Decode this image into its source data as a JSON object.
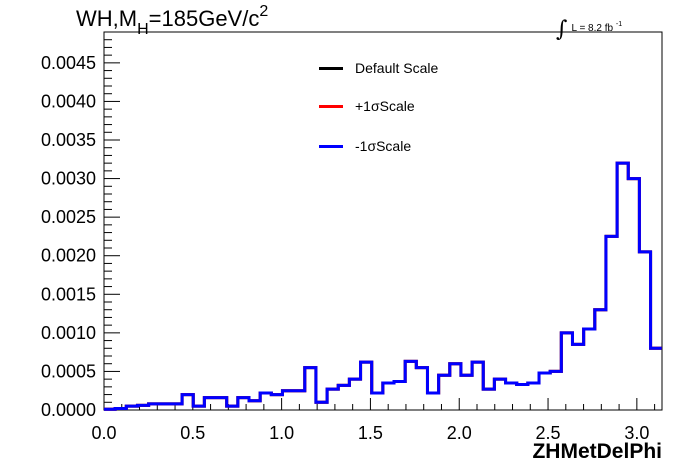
{
  "chart_data": {
    "type": "line",
    "title_prefix": "WH,M",
    "title_subscript": "H",
    "title_suffix": "=185GeV/c",
    "title_superscript": "2",
    "lumi_label": "L = 8.2 fb",
    "lumi_superscript": "-1",
    "xlabel": "ZHMetDelPhi",
    "xlim": [
      0.0,
      3.1416
    ],
    "ylim": [
      0.0,
      0.0049
    ],
    "x_ticks": [
      "0.0",
      "0.5",
      "1.0",
      "1.5",
      "2.0",
      "2.5",
      "3.0"
    ],
    "x_tick_values": [
      0.0,
      0.5,
      1.0,
      1.5,
      2.0,
      2.5,
      3.0
    ],
    "y_ticks": [
      "0.0000",
      "0.0005",
      "0.0010",
      "0.0015",
      "0.0020",
      "0.0025",
      "0.0030",
      "0.0035",
      "0.0040",
      "0.0045"
    ],
    "y_tick_values": [
      0.0,
      0.0005,
      0.001,
      0.0015,
      0.002,
      0.0025,
      0.003,
      0.0035,
      0.004,
      0.0045
    ],
    "grid": false,
    "legend_position": "top-center",
    "bin_width": 0.0628,
    "series": [
      {
        "name": "Default Scale",
        "color": "#000000",
        "values": [
          1e-05,
          2e-05,
          5e-05,
          6e-05,
          8e-05,
          8e-05,
          8e-05,
          0.0002,
          5e-05,
          0.00016,
          0.00016,
          5e-05,
          0.00016,
          0.00012,
          0.00022,
          0.0002,
          0.00025,
          0.00025,
          0.00055,
          0.0001,
          0.00027,
          0.00032,
          0.0004,
          0.00062,
          0.00022,
          0.00035,
          0.00037,
          0.00063,
          0.00055,
          0.00022,
          0.00045,
          0.0006,
          0.00045,
          0.00062,
          0.00027,
          0.0004,
          0.00035,
          0.00033,
          0.00035,
          0.00048,
          0.0005,
          0.001,
          0.00085,
          0.00105,
          0.0013,
          0.00225,
          0.0032,
          0.003,
          0.00205,
          0.0008
        ]
      },
      {
        "name": "+1σScale",
        "color": "#ff0000",
        "values": [
          1e-05,
          2e-05,
          5e-05,
          6e-05,
          8e-05,
          8e-05,
          8e-05,
          0.0002,
          5e-05,
          0.00016,
          0.00016,
          5e-05,
          0.00016,
          0.00012,
          0.00022,
          0.0002,
          0.00025,
          0.00025,
          0.00055,
          0.0001,
          0.00027,
          0.00032,
          0.0004,
          0.00062,
          0.00022,
          0.00035,
          0.00037,
          0.00063,
          0.00055,
          0.00022,
          0.00045,
          0.0006,
          0.00045,
          0.00062,
          0.00027,
          0.0004,
          0.00035,
          0.00033,
          0.00035,
          0.00048,
          0.0005,
          0.001,
          0.00085,
          0.00105,
          0.0013,
          0.00225,
          0.0032,
          0.003,
          0.00205,
          0.0008
        ]
      },
      {
        "name": "-1σScale",
        "color": "#0000ff",
        "values": [
          1e-05,
          2e-05,
          5e-05,
          6e-05,
          8e-05,
          8e-05,
          8e-05,
          0.0002,
          5e-05,
          0.00016,
          0.00016,
          5e-05,
          0.00016,
          0.00012,
          0.00022,
          0.0002,
          0.00025,
          0.00025,
          0.00055,
          0.0001,
          0.00027,
          0.00032,
          0.0004,
          0.00062,
          0.00022,
          0.00035,
          0.00037,
          0.00063,
          0.00055,
          0.00022,
          0.00045,
          0.0006,
          0.00045,
          0.00062,
          0.00027,
          0.0004,
          0.00035,
          0.00033,
          0.00035,
          0.00048,
          0.0005,
          0.001,
          0.00085,
          0.00105,
          0.0013,
          0.00225,
          0.0032,
          0.003,
          0.00205,
          0.0008
        ]
      }
    ]
  }
}
